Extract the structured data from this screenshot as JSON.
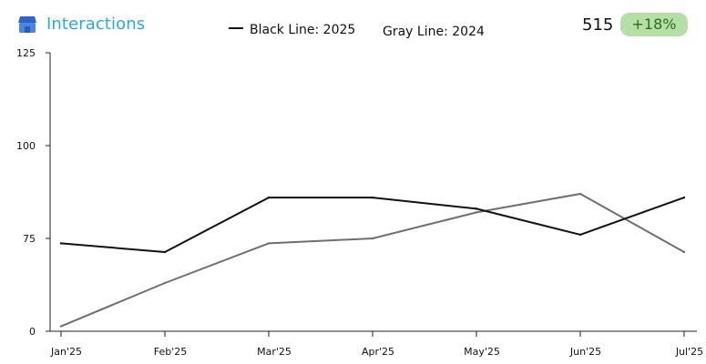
{
  "header": {
    "title": "Interactions",
    "brand_icon": "store-icon",
    "legend": [
      {
        "label": "Black Line: 2025",
        "color": "#111111",
        "swatch": true
      },
      {
        "label": "Gray Line: 2024",
        "color": "#777777",
        "swatch": false
      }
    ],
    "total": "515",
    "change": "+18%",
    "change_bg": "#b5dfa6",
    "change_fg": "#2c6e1f"
  },
  "chart_data": {
    "type": "line",
    "title": "Interactions",
    "xlabel": "",
    "ylabel": "",
    "x_ticks": [
      "Jan'25",
      "Feb'25",
      "Mar'25",
      "Apr'25",
      "May'25",
      "Jun'25",
      "Jul'25"
    ],
    "y_ticks": [
      0,
      75,
      100,
      125
    ],
    "ylim": [
      0,
      125
    ],
    "y_axis_note": "non-linear scale: 0 to 75 occupies a quarter of the axis height, each 25 above occupies a quarter",
    "grid": false,
    "series": [
      {
        "name": "Black Line: 2025",
        "color": "#111111",
        "points": [
          {
            "x": "Jan'25",
            "y": 71
          },
          {
            "x": "Feb'25",
            "y": 64
          },
          {
            "x": "Mar'25",
            "y": 86
          },
          {
            "x": "Apr'25",
            "y": 86
          },
          {
            "x": "May'25",
            "y": 83
          },
          {
            "x": "Jun'25",
            "y": 76
          },
          {
            "x": "Jul'25",
            "y": 86
          }
        ]
      },
      {
        "name": "Gray Line: 2024",
        "color": "#6f6f6f",
        "points": [
          {
            "x": "Jan'25",
            "y": 4
          },
          {
            "x": "Feb'25",
            "y": 39
          },
          {
            "x": "Mar'25",
            "y": 71
          },
          {
            "x": "Apr'25",
            "y": 75
          },
          {
            "x": "May'25",
            "y": 82
          },
          {
            "x": "Jun'25",
            "y": 87
          },
          {
            "x": "Jul'25",
            "y": 64
          }
        ]
      }
    ]
  }
}
